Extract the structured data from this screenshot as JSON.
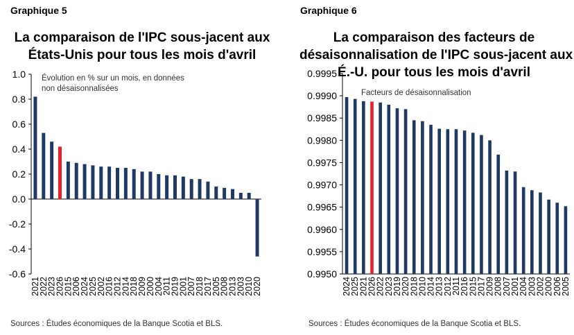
{
  "chart_data": [
    {
      "label": "Graphique 5",
      "title_lines": [
        "La comparaison de l'IPC sous-jacent aux",
        "États-Unis pour tous les mois d'avril"
      ],
      "type": "bar",
      "annotation_lines": [
        "Évolution en % sur un mois, en données",
        "non désaisonnalisées"
      ],
      "categories": [
        "2021",
        "2022",
        "2023",
        "2026",
        "2015",
        "2006",
        "2024",
        "2025",
        "2002",
        "2016",
        "2012",
        "2014",
        "2018",
        "2009",
        "2000",
        "2004",
        "2011",
        "2019",
        "2001",
        "2007",
        "2018",
        "2017",
        "2005",
        "2008",
        "2013",
        "2003",
        "2010",
        "2020"
      ],
      "values": [
        0.82,
        0.53,
        0.46,
        0.42,
        0.3,
        0.29,
        0.28,
        0.27,
        0.26,
        0.26,
        0.25,
        0.25,
        0.24,
        0.22,
        0.22,
        0.2,
        0.19,
        0.19,
        0.18,
        0.16,
        0.16,
        0.14,
        0.1,
        0.09,
        0.08,
        0.05,
        0.05,
        -0.46
      ],
      "highlight_category": "2026",
      "ylim": [
        -0.6,
        1.0
      ],
      "yticks": [
        "1.0",
        "0.8",
        "0.6",
        "0.4",
        "0.2",
        "0.0",
        "-0.2",
        "-0.4",
        "-0.6"
      ],
      "bar_color": "#1F3864",
      "highlight_color": "#E8202A",
      "source": "Sources : Études économiques de la Banque Scotia et BLS."
    },
    {
      "label": "Graphique 6",
      "title_lines": [
        "La comparaison des facteurs de",
        "désaisonnalisation de l'IPC sous-jacent aux",
        "É.-U. pour tous les mois d'avril"
      ],
      "type": "bar",
      "annotation_lines": [
        "Facteurs de désaisonnalisation"
      ],
      "categories": [
        "2024",
        "2025",
        "2021",
        "2026",
        "2022",
        "2023",
        "2019",
        "2020",
        "2018",
        "2010",
        "2014",
        "2013",
        "2012",
        "2011",
        "2016",
        "2015",
        "2017",
        "2009",
        "2008",
        "2007",
        "2001",
        "2004",
        "2003",
        "2002",
        "2000",
        "2006",
        "2005"
      ],
      "values": [
        0.99897,
        0.99893,
        0.99888,
        0.99887,
        0.99885,
        0.9988,
        0.99872,
        0.9987,
        0.99845,
        0.99843,
        0.99835,
        0.99826,
        0.99825,
        0.99825,
        0.99822,
        0.99817,
        0.99812,
        0.998,
        0.99768,
        0.99732,
        0.9973,
        0.99695,
        0.99688,
        0.99683,
        0.99667,
        0.9966,
        0.99652
      ],
      "highlight_category": "2026",
      "ylim": [
        0.995,
        0.9995
      ],
      "yticks": [
        "0.9995",
        "0.9990",
        "0.9985",
        "0.9980",
        "0.9975",
        "0.9970",
        "0.9965",
        "0.9960",
        "0.9955",
        "0.9950"
      ],
      "bar_color": "#1F3864",
      "highlight_color": "#E8202A",
      "source": "Sources : Études économiques de la Banque Scotia et BLS."
    }
  ]
}
